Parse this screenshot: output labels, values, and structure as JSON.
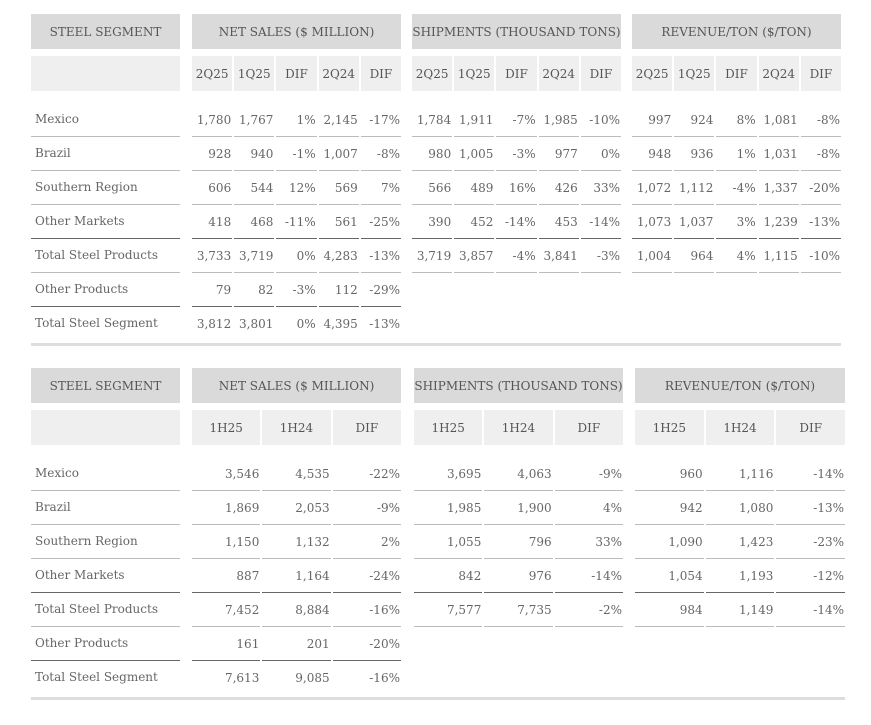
{
  "tables": [
    {
      "label_header": "STEEL SEGMENT",
      "row_labels": [
        "Mexico",
        "Brazil",
        "Southern Region",
        "Other Markets",
        "Total Steel Products",
        "Other Products",
        "Total Steel Segment"
      ],
      "groups": [
        {
          "title": "NET SALES ($ MILLION)",
          "subcols": [
            "2Q25",
            "1Q25",
            "DIF",
            "2Q24",
            "DIF"
          ],
          "rows": [
            [
              "1,780",
              "1,767",
              "1%",
              "2,145",
              "-17%"
            ],
            [
              "928",
              "940",
              "-1%",
              "1,007",
              "-8%"
            ],
            [
              "606",
              "544",
              "12%",
              "569",
              "7%"
            ],
            [
              "418",
              "468",
              "-11%",
              "561",
              "-25%"
            ],
            [
              "3,733",
              "3,719",
              "0%",
              "4,283",
              "-13%"
            ],
            [
              "79",
              "82",
              "-3%",
              "112",
              "-29%"
            ],
            [
              "3,812",
              "3,801",
              "0%",
              "4,395",
              "-13%"
            ]
          ]
        },
        {
          "title": "SHIPMENTS (THOUSAND TONS)",
          "subcols": [
            "2Q25",
            "1Q25",
            "DIF",
            "2Q24",
            "DIF"
          ],
          "rows": [
            [
              "1,784",
              "1,911",
              "-7%",
              "1,985",
              "-10%"
            ],
            [
              "980",
              "1,005",
              "-3%",
              "977",
              "0%"
            ],
            [
              "566",
              "489",
              "16%",
              "426",
              "33%"
            ],
            [
              "390",
              "452",
              "-14%",
              "453",
              "-14%"
            ],
            [
              "3,719",
              "3,857",
              "-4%",
              "3,841",
              "-3%"
            ]
          ]
        },
        {
          "title": "REVENUE/TON ($/TON)",
          "subcols": [
            "2Q25",
            "1Q25",
            "DIF",
            "2Q24",
            "DIF"
          ],
          "rows": [
            [
              "997",
              "924",
              "8%",
              "1,081",
              "-8%"
            ],
            [
              "948",
              "936",
              "1%",
              "1,031",
              "-8%"
            ],
            [
              "1,072",
              "1,112",
              "-4%",
              "1,337",
              "-20%"
            ],
            [
              "1,073",
              "1,037",
              "3%",
              "1,239",
              "-13%"
            ],
            [
              "1,004",
              "964",
              "4%",
              "1,115",
              "-10%"
            ]
          ]
        }
      ]
    },
    {
      "label_header": "STEEL SEGMENT",
      "row_labels": [
        "Mexico",
        "Brazil",
        "Southern Region",
        "Other Markets",
        "Total Steel Products",
        "Other Products",
        "Total Steel Segment"
      ],
      "groups": [
        {
          "title": "NET SALES ($ MILLION)",
          "subcols": [
            "1H25",
            "1H24",
            "DIF"
          ],
          "rows": [
            [
              "3,546",
              "4,535",
              "-22%"
            ],
            [
              "1,869",
              "2,053",
              "-9%"
            ],
            [
              "1,150",
              "1,132",
              "2%"
            ],
            [
              "887",
              "1,164",
              "-24%"
            ],
            [
              "7,452",
              "8,884",
              "-16%"
            ],
            [
              "161",
              "201",
              "-20%"
            ],
            [
              "7,613",
              "9,085",
              "-16%"
            ]
          ]
        },
        {
          "title": "SHIPMENTS (THOUSAND TONS)",
          "subcols": [
            "1H25",
            "1H24",
            "DIF"
          ],
          "rows": [
            [
              "3,695",
              "4,063",
              "-9%"
            ],
            [
              "1,985",
              "1,900",
              "4%"
            ],
            [
              "1,055",
              "796",
              "33%"
            ],
            [
              "842",
              "976",
              "-14%"
            ],
            [
              "7,577",
              "7,735",
              "-2%"
            ]
          ]
        },
        {
          "title": "REVENUE/TON ($/TON)",
          "subcols": [
            "1H25",
            "1H24",
            "DIF"
          ],
          "rows": [
            [
              "960",
              "1,116",
              "-14%"
            ],
            [
              "942",
              "1,080",
              "-13%"
            ],
            [
              "1,090",
              "1,423",
              "-23%"
            ],
            [
              "1,054",
              "1,193",
              "-12%"
            ],
            [
              "984",
              "1,149",
              "-14%"
            ]
          ]
        }
      ]
    }
  ]
}
